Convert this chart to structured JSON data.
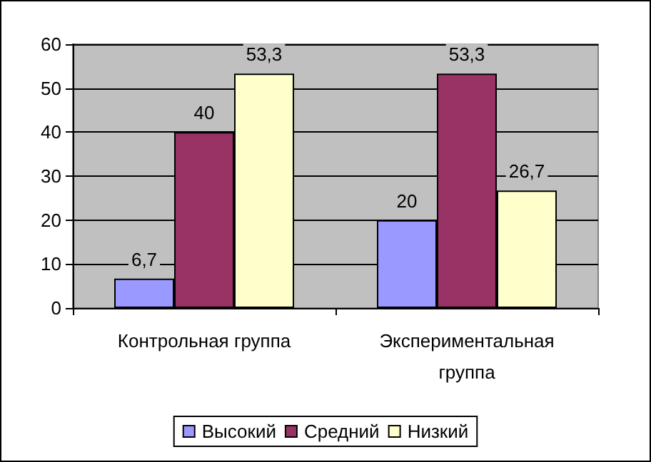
{
  "chart_data": {
    "type": "bar",
    "categories": [
      "Контрольная группа",
      "Экспериментальная группа"
    ],
    "series": [
      {
        "name": "Высокий",
        "color": "#9999ff",
        "values": [
          6.7,
          20
        ],
        "value_labels": [
          "6,7",
          "20"
        ]
      },
      {
        "name": "Средний",
        "color": "#993366",
        "values": [
          40,
          53.3
        ],
        "value_labels": [
          "40",
          "53,3"
        ]
      },
      {
        "name": "Низкий",
        "color": "#ffffcc",
        "values": [
          53.3,
          26.7
        ],
        "value_labels": [
          "53,3",
          "26,7"
        ]
      }
    ],
    "ylim": [
      0,
      60
    ],
    "yticks": [
      0,
      10,
      20,
      30,
      40,
      50,
      60
    ],
    "grid": "y",
    "legend": "bottom"
  }
}
